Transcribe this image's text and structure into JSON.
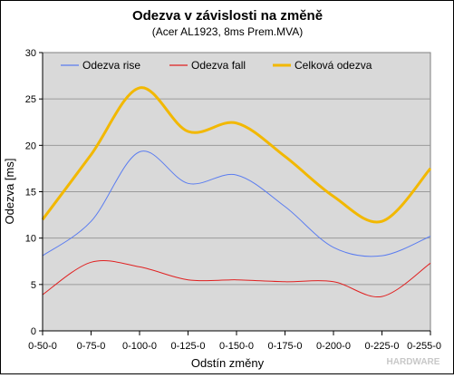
{
  "chart_data": {
    "type": "line",
    "title": "Odezva v závislosti na změně",
    "subtitle": "(Acer AL1923, 8ms Prem.MVA)",
    "xlabel": "Odstín změny",
    "ylabel": "Odezva [ms]",
    "categories": [
      "0-50-0",
      "0-75-0",
      "0-100-0",
      "0-125-0",
      "0-150-0",
      "0-175-0",
      "0-200-0",
      "0-225-0",
      "0-255-0"
    ],
    "ylim": [
      0,
      30
    ],
    "yticks": [
      0,
      5,
      10,
      15,
      20,
      25,
      30
    ],
    "grid": true,
    "legend_position": "top",
    "series": [
      {
        "name": "Odezva rise",
        "color": "#5b7df0",
        "values": [
          8.1,
          11.8,
          19.3,
          15.9,
          16.8,
          13.4,
          9.0,
          8.1,
          10.2
        ]
      },
      {
        "name": "Odezva fall",
        "color": "#e02020",
        "values": [
          3.9,
          7.4,
          6.9,
          5.5,
          5.5,
          5.3,
          5.3,
          3.7,
          7.3
        ]
      },
      {
        "name": "Celková odezva",
        "color": "#f2b800",
        "values": [
          12.0,
          19.0,
          26.2,
          21.5,
          22.4,
          18.8,
          14.5,
          11.8,
          17.5
        ]
      }
    ]
  },
  "watermark": "HARDWARE"
}
